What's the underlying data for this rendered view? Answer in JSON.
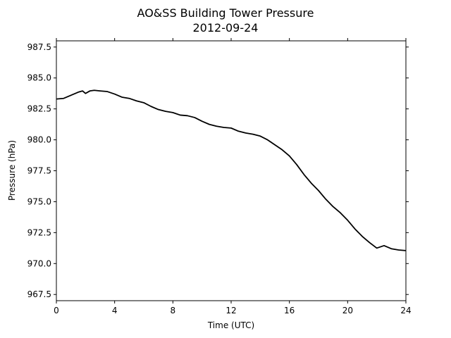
{
  "chart_data": {
    "type": "line",
    "title": "AO&SS Building Tower Pressure",
    "subtitle": "2012-09-24",
    "xlabel": "Time (UTC)",
    "ylabel": "Pressure (hPa)",
    "xlim": [
      0,
      24
    ],
    "ylim": [
      967,
      988
    ],
    "xticks": [
      0,
      4,
      8,
      12,
      16,
      20,
      24
    ],
    "xtick_labels": [
      "0",
      "4",
      "8",
      "12",
      "16",
      "20",
      "24"
    ],
    "yticks": [
      967.5,
      970.0,
      972.5,
      975.0,
      977.5,
      980.0,
      982.5,
      985.0,
      987.5
    ],
    "ytick_labels": [
      "967.5",
      "970.0",
      "972.5",
      "975.0",
      "977.5",
      "980.0",
      "982.5",
      "985.0",
      "987.5"
    ],
    "grid": false,
    "line_color": "#000000",
    "series": [
      {
        "x": [
          0,
          0.5,
          1,
          1.5,
          1.8,
          2.0,
          2.3,
          2.6,
          3.0,
          3.5,
          4.0,
          4.5,
          5.0,
          5.5,
          6.0,
          6.5,
          7.0,
          7.5,
          8.0,
          8.5,
          9.0,
          9.5,
          10.0,
          10.5,
          11.0,
          11.5,
          12.0,
          12.5,
          13.0,
          13.5,
          14.0,
          14.5,
          15.0,
          15.5,
          16.0,
          16.5,
          17.0,
          17.5,
          18.0,
          18.5,
          19.0,
          19.5,
          20.0,
          20.5,
          21.0,
          21.5,
          22.0,
          22.5,
          23.0,
          23.5,
          24.0
        ],
        "y": [
          983.3,
          983.35,
          983.6,
          983.85,
          983.95,
          983.75,
          983.95,
          984.0,
          983.95,
          983.9,
          983.7,
          983.45,
          983.35,
          983.15,
          983.0,
          982.7,
          982.45,
          982.3,
          982.2,
          982.0,
          981.95,
          981.8,
          981.5,
          981.25,
          981.1,
          981.0,
          980.95,
          980.7,
          980.55,
          980.45,
          980.3,
          980.0,
          979.6,
          979.2,
          978.7,
          978.0,
          977.2,
          976.5,
          975.9,
          975.2,
          974.6,
          974.1,
          973.5,
          972.8,
          972.2,
          971.7,
          971.25,
          971.45,
          971.2,
          971.1,
          971.05
        ]
      }
    ]
  }
}
